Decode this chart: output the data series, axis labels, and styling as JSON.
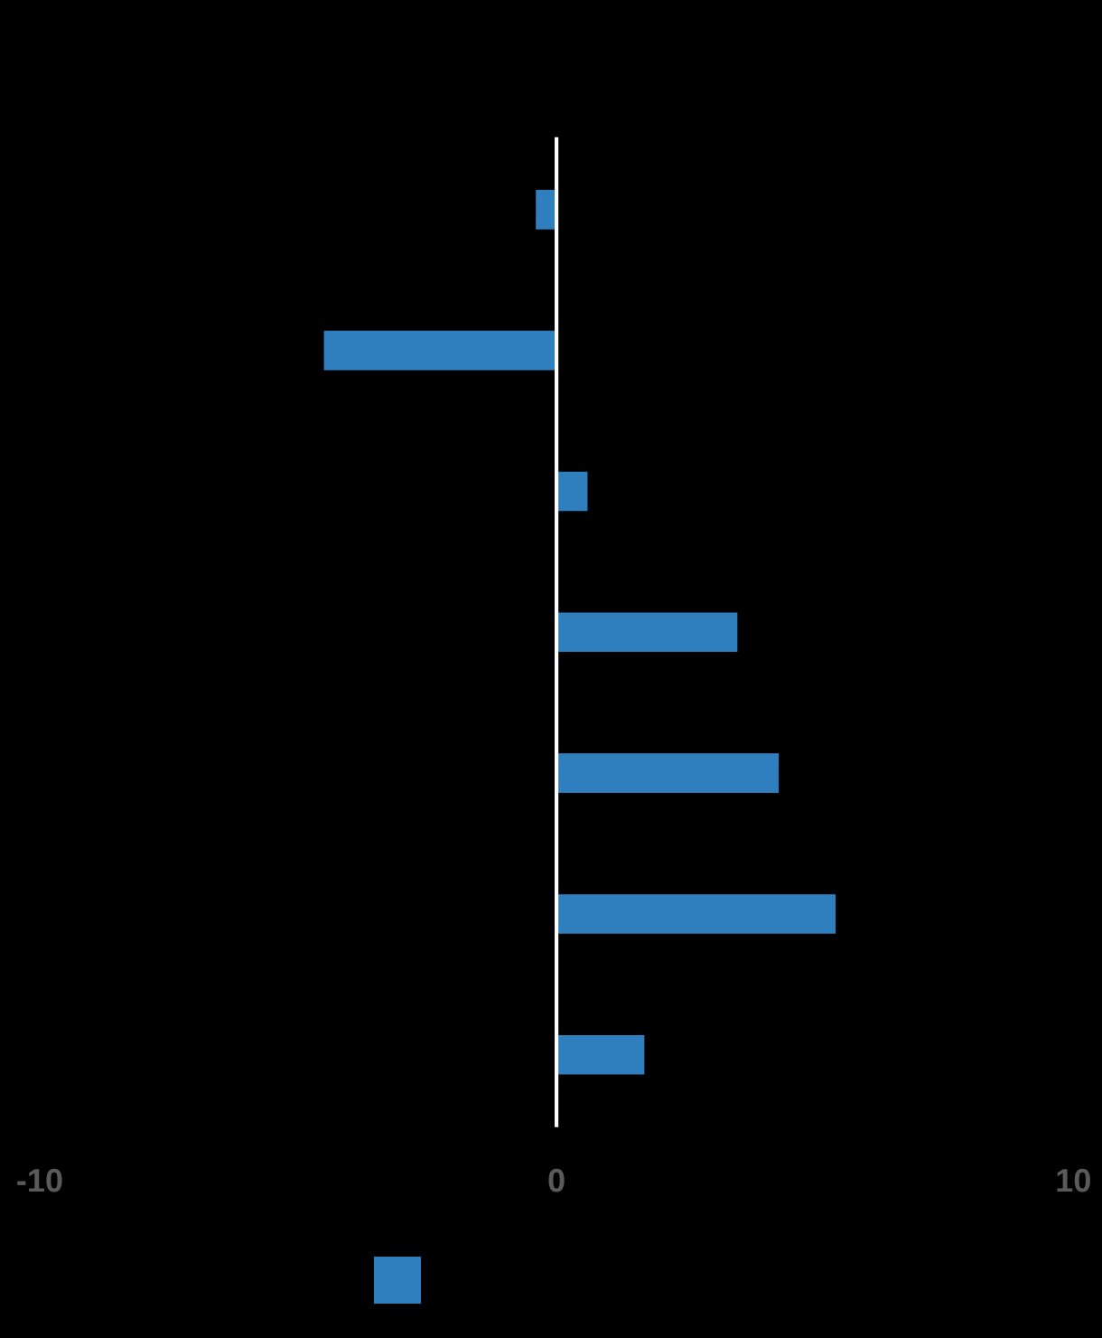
{
  "chart_data": {
    "type": "bar",
    "orientation": "horizontal",
    "categories": [
      null,
      null,
      null,
      null,
      null,
      null,
      null
    ],
    "series": [
      {
        "color": "#2f7fbf",
        "values": [
          -0.4,
          -4.5,
          0.6,
          3.5,
          4.3,
          5.4,
          1.7
        ]
      }
    ],
    "xlim": [
      -10,
      10
    ],
    "xticks": [
      -10,
      0,
      10
    ],
    "tick_labels": "x"
  }
}
